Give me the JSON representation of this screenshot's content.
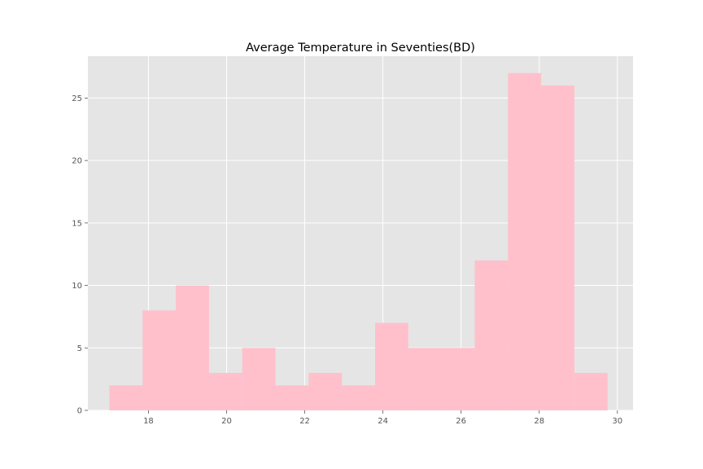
{
  "chart_data": {
    "type": "bar",
    "title": "Average Temperature in Seventies(BD)",
    "xlabel": "",
    "ylabel": "",
    "bin_edges": [
      17.0,
      17.85,
      18.7,
      19.55,
      20.4,
      21.25,
      22.1,
      22.95,
      23.8,
      24.65,
      25.5,
      26.35,
      27.2,
      28.05,
      28.9,
      29.75
    ],
    "values": [
      2,
      8,
      10,
      3,
      5,
      2,
      3,
      2,
      7,
      5,
      5,
      12,
      27,
      26,
      3
    ],
    "xlim": [
      16.45,
      30.4
    ],
    "ylim": [
      0,
      28.35
    ],
    "xticks": [
      18,
      20,
      22,
      24,
      26,
      28,
      30
    ],
    "yticks": [
      0,
      5,
      10,
      15,
      20,
      25
    ],
    "bar_color": "#ffc0cb",
    "background_color": "#e5e5e5",
    "grid": true
  }
}
